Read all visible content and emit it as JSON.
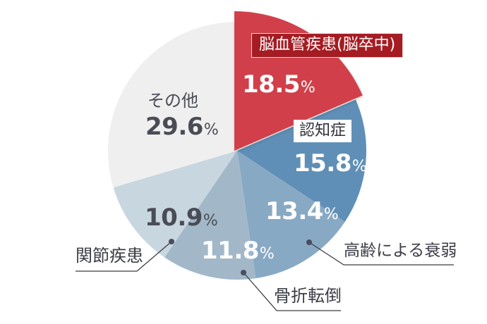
{
  "chart_data": {
    "type": "pie",
    "title": "",
    "start_angle": "12 o'clock, clockwise",
    "exploded": [
      "脳血管疾患(脳卒中)"
    ],
    "categories": [
      "脳血管疾患(脳卒中)",
      "認知症",
      "高齢による衰弱",
      "骨折転倒",
      "関節疾患",
      "その他"
    ],
    "values": [
      18.5,
      15.8,
      13.4,
      11.8,
      10.9,
      29.6
    ],
    "unit": "%",
    "colors": [
      "#d1404a",
      "#5f8fb6",
      "#88a9c4",
      "#a2b8c9",
      "#c8d6e0",
      "#efefef"
    ]
  },
  "labels": {
    "stroke": {
      "name": "脳血管疾患(脳卒中)",
      "value": "18.5",
      "unit": "%"
    },
    "dementia": {
      "name": "認知症",
      "value": "15.8",
      "unit": "%"
    },
    "frailty": {
      "name": "高齢による衰弱",
      "value": "13.4",
      "unit": "%"
    },
    "fracture": {
      "name": "骨折転倒",
      "value": "11.8",
      "unit": "%"
    },
    "joint": {
      "name": "関節疾患",
      "value": "10.9",
      "unit": "%"
    },
    "other": {
      "name": "その他",
      "value": "29.6",
      "unit": "%"
    }
  }
}
